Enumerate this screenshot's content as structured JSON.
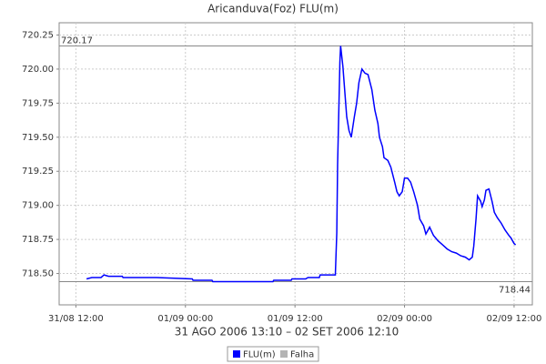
{
  "chart_data": {
    "type": "line",
    "title": "Aricanduva(Foz) FLU(m)",
    "subtitle": "31 AGO 2006 13:10 – 02 SET 2006 12:10",
    "x": [
      "31/08 13:10",
      "31/08 13:45",
      "31/08 14:45",
      "31/08 15:05",
      "31/08 15:35",
      "31/08 17:05",
      "31/08 17:10",
      "31/08 20:50",
      "01/09 00:45",
      "01/09 00:50",
      "01/09 02:55",
      "01/09 03:00",
      "01/09 09:35",
      "01/09 09:40",
      "01/09 11:35",
      "01/09 11:40",
      "01/09 13:10",
      "01/09 13:25",
      "01/09 14:40",
      "01/09 14:45",
      "01/09 16:25",
      "01/09 16:35",
      "01/09 16:40",
      "01/09 16:55",
      "01/09 17:00",
      "01/09 17:15",
      "01/09 17:30",
      "01/09 17:40",
      "01/09 17:55",
      "01/09 18:10",
      "01/09 18:30",
      "01/09 18:45",
      "01/09 19:00",
      "01/09 19:20",
      "01/09 19:40",
      "01/09 20:00",
      "01/09 20:25",
      "01/09 20:45",
      "01/09 21:05",
      "01/09 21:15",
      "01/09 21:35",
      "01/09 21:45",
      "01/09 22:10",
      "01/09 22:30",
      "01/09 22:55",
      "01/09 23:10",
      "01/09 23:25",
      "01/09 23:45",
      "02/09 00:00",
      "02/09 00:20",
      "02/09 00:40",
      "02/09 01:00",
      "02/09 01:25",
      "02/09 01:40",
      "02/09 02:05",
      "02/09 02:20",
      "02/09 02:40",
      "02/09 02:45",
      "02/09 03:10",
      "02/09 03:40",
      "02/09 04:10",
      "02/09 04:40",
      "02/09 05:10",
      "02/09 05:40",
      "02/09 06:10",
      "02/09 06:40",
      "02/09 07:05",
      "02/09 07:25",
      "02/09 07:35",
      "02/09 07:50",
      "02/09 08:00",
      "02/09 08:20",
      "02/09 08:30",
      "02/09 08:45",
      "02/09 08:55",
      "02/09 09:15",
      "02/09 09:35",
      "02/09 09:50",
      "02/09 10:10",
      "02/09 10:35",
      "02/09 11:00",
      "02/09 11:25",
      "02/09 11:40",
      "02/09 12:00",
      "02/09 12:10"
    ],
    "series": [
      {
        "name": "FLU(m)",
        "color": "#0000ff",
        "values": [
          718.46,
          718.47,
          718.47,
          718.49,
          718.48,
          718.48,
          718.47,
          718.47,
          718.46,
          718.45,
          718.45,
          718.44,
          718.44,
          718.45,
          718.45,
          718.46,
          718.46,
          718.47,
          718.47,
          718.49,
          718.49,
          718.8,
          719.3,
          720.05,
          720.17,
          720.02,
          719.8,
          719.65,
          719.55,
          719.5,
          719.65,
          719.75,
          719.9,
          720.0,
          719.97,
          719.96,
          719.85,
          719.7,
          719.6,
          719.5,
          719.43,
          719.35,
          719.33,
          719.28,
          719.17,
          719.1,
          719.07,
          719.1,
          719.2,
          719.2,
          719.17,
          719.1,
          719.0,
          718.9,
          718.85,
          718.79,
          718.83,
          718.84,
          718.78,
          718.74,
          718.71,
          718.68,
          718.66,
          718.65,
          718.63,
          718.62,
          718.6,
          718.62,
          718.7,
          718.9,
          719.07,
          719.03,
          718.99,
          719.04,
          719.11,
          719.12,
          719.03,
          718.95,
          718.91,
          718.87,
          718.82,
          718.78,
          718.76,
          718.72,
          718.71
        ]
      }
    ],
    "failure_legend": {
      "name": "Falha",
      "color": "#b4b4b4"
    },
    "markers": [
      720.17,
      718.44
    ],
    "xlim": [
      "31/08 10:10",
      "02/09 14:00"
    ],
    "xticks": [
      "31/08 12:00",
      "01/09 00:00",
      "01/09 12:00",
      "02/09 00:00",
      "02/09 12:00"
    ],
    "ylim": [
      718.27,
      720.34
    ],
    "yticks": [
      {
        "value": 718.5,
        "label": "718.50"
      },
      718.75,
      {
        "value": 719,
        "label": "719.00"
      },
      719.25,
      {
        "value": 719.5,
        "label": "719.50"
      },
      719.75,
      {
        "value": 720,
        "label": "720.00"
      },
      720.25
    ],
    "grid": true
  }
}
